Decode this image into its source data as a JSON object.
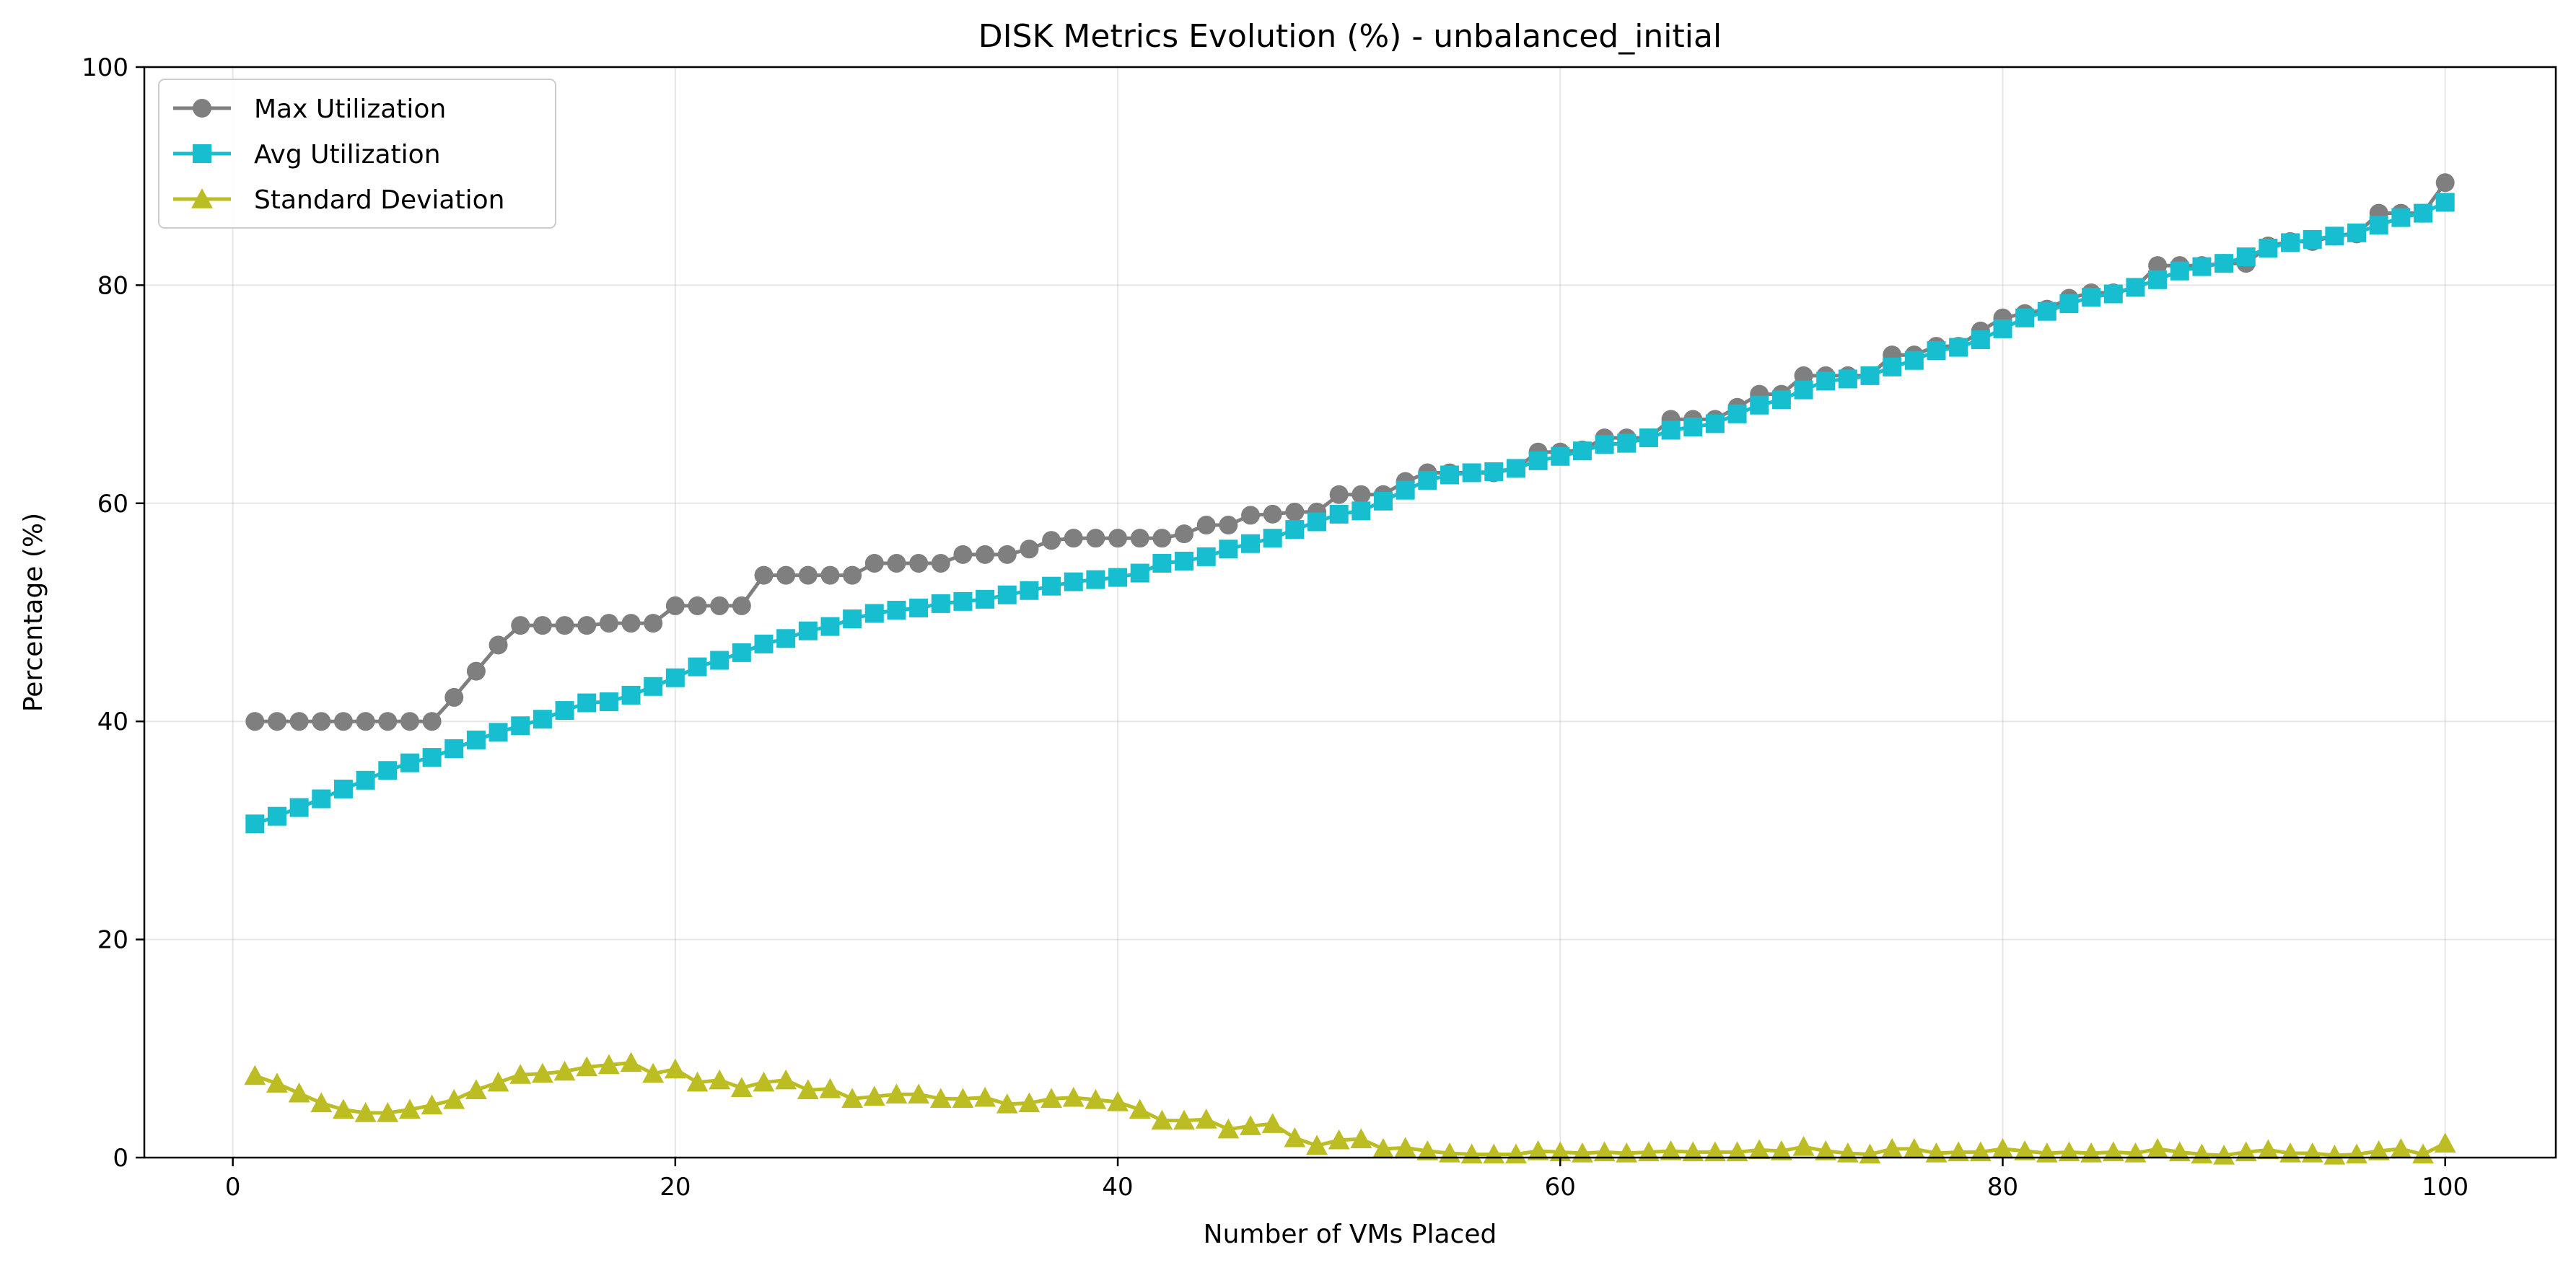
{
  "chart_data": {
    "type": "line",
    "title": "DISK Metrics Evolution (%) - unbalanced_initial",
    "xlabel": "Number of VMs Placed",
    "ylabel": "Percentage (%)",
    "xlim": [
      -4,
      105
    ],
    "ylim": [
      0,
      100
    ],
    "xticks": [
      0,
      20,
      40,
      60,
      80,
      100
    ],
    "yticks": [
      0,
      20,
      40,
      60,
      80,
      100
    ],
    "grid": true,
    "legend_position": "top-left",
    "series": [
      {
        "name": "Max Utilization",
        "color": "#7f7f7f",
        "marker": "circle",
        "x": [
          1,
          2,
          3,
          4,
          5,
          6,
          7,
          8,
          9,
          10,
          11,
          12,
          13,
          14,
          15,
          16,
          17,
          18,
          19,
          20,
          21,
          22,
          23,
          24,
          25,
          26,
          27,
          28,
          29,
          30,
          31,
          32,
          33,
          34,
          35,
          36,
          37,
          38,
          39,
          40,
          41,
          42,
          43,
          44,
          45,
          46,
          47,
          48,
          49,
          50,
          51,
          52,
          53,
          54,
          55,
          56,
          57,
          58,
          59,
          60,
          61,
          62,
          63,
          64,
          65,
          66,
          67,
          68,
          69,
          70,
          71,
          72,
          73,
          74,
          75,
          76,
          77,
          78,
          79,
          80,
          81,
          82,
          83,
          84,
          85,
          86,
          87,
          88,
          89,
          90,
          91,
          92,
          93,
          94,
          95,
          96,
          97,
          98,
          99,
          100
        ],
        "values": [
          40,
          40,
          40,
          40,
          40,
          40,
          40,
          40,
          40,
          42.2,
          44.6,
          47,
          48.8,
          48.8,
          48.8,
          48.8,
          49,
          49,
          49,
          50.6,
          50.6,
          50.6,
          50.6,
          53.4,
          53.4,
          53.4,
          53.4,
          53.4,
          54.5,
          54.5,
          54.5,
          54.5,
          55.3,
          55.3,
          55.3,
          55.8,
          56.6,
          56.8,
          56.8,
          56.8,
          56.8,
          56.8,
          57.2,
          58,
          58,
          58.9,
          59,
          59.2,
          59.2,
          60.8,
          60.8,
          60.8,
          62,
          62.8,
          62.8,
          62.8,
          62.8,
          63.2,
          64.7,
          64.7,
          64.9,
          66,
          66,
          66,
          67.7,
          67.7,
          67.7,
          68.8,
          70,
          70,
          71.7,
          71.7,
          71.7,
          71.7,
          73.6,
          73.6,
          74.4,
          74.4,
          75.8,
          77,
          77.4,
          77.8,
          78.8,
          79.3,
          79.3,
          79.8,
          81.8,
          81.8,
          81.8,
          82,
          82,
          83.6,
          84,
          84,
          84.5,
          84.7,
          86.6,
          86.6,
          86.6,
          89.4
        ]
      },
      {
        "name": "Avg Utilization",
        "color": "#17becf",
        "marker": "square",
        "x": [
          1,
          2,
          3,
          4,
          5,
          6,
          7,
          8,
          9,
          10,
          11,
          12,
          13,
          14,
          15,
          16,
          17,
          18,
          19,
          20,
          21,
          22,
          23,
          24,
          25,
          26,
          27,
          28,
          29,
          30,
          31,
          32,
          33,
          34,
          35,
          36,
          37,
          38,
          39,
          40,
          41,
          42,
          43,
          44,
          45,
          46,
          47,
          48,
          49,
          50,
          51,
          52,
          53,
          54,
          55,
          56,
          57,
          58,
          59,
          60,
          61,
          62,
          63,
          64,
          65,
          66,
          67,
          68,
          69,
          70,
          71,
          72,
          73,
          74,
          75,
          76,
          77,
          78,
          79,
          80,
          81,
          82,
          83,
          84,
          85,
          86,
          87,
          88,
          89,
          90,
          91,
          92,
          93,
          94,
          95,
          96,
          97,
          98,
          99,
          100
        ],
        "values": [
          30.6,
          31.3,
          32.1,
          32.9,
          33.8,
          34.6,
          35.5,
          36.2,
          36.7,
          37.5,
          38.3,
          39,
          39.6,
          40.2,
          41,
          41.7,
          41.8,
          42.4,
          43.2,
          44,
          45,
          45.6,
          46.3,
          47.1,
          47.6,
          48.3,
          48.7,
          49.4,
          49.9,
          50.2,
          50.4,
          50.8,
          51,
          51.2,
          51.6,
          52,
          52.4,
          52.8,
          53,
          53.2,
          53.6,
          54.5,
          54.7,
          55.1,
          55.8,
          56.3,
          56.8,
          57.6,
          58.3,
          59,
          59.3,
          60.2,
          61.2,
          62.1,
          62.6,
          62.8,
          62.9,
          63.2,
          63.9,
          64.3,
          64.8,
          65.4,
          65.5,
          66,
          66.7,
          67,
          67.3,
          68.2,
          69,
          69.5,
          70.4,
          71.2,
          71.4,
          71.7,
          72.5,
          73.1,
          74,
          74.3,
          75,
          76,
          77,
          77.6,
          78.3,
          78.9,
          79.2,
          79.8,
          80.5,
          81.3,
          81.7,
          82,
          82.6,
          83.4,
          83.9,
          84.2,
          84.5,
          84.8,
          85.5,
          86.2,
          86.6,
          87.6
        ]
      },
      {
        "name": "Standard Deviation",
        "color": "#bcbd22",
        "marker": "triangle",
        "x": [
          1,
          2,
          3,
          4,
          5,
          6,
          7,
          8,
          9,
          10,
          11,
          12,
          13,
          14,
          15,
          16,
          17,
          18,
          19,
          20,
          21,
          22,
          23,
          24,
          25,
          26,
          27,
          28,
          29,
          30,
          31,
          32,
          33,
          34,
          35,
          36,
          37,
          38,
          39,
          40,
          41,
          42,
          43,
          44,
          45,
          46,
          47,
          48,
          49,
          50,
          51,
          52,
          53,
          54,
          55,
          56,
          57,
          58,
          59,
          60,
          61,
          62,
          63,
          64,
          65,
          66,
          67,
          68,
          69,
          70,
          71,
          72,
          73,
          74,
          75,
          76,
          77,
          78,
          79,
          80,
          81,
          82,
          83,
          84,
          85,
          86,
          87,
          88,
          89,
          90,
          91,
          92,
          93,
          94,
          95,
          96,
          97,
          98,
          99,
          100
        ],
        "values": [
          7.5,
          6.8,
          5.9,
          5,
          4.4,
          4.1,
          4.1,
          4.4,
          4.8,
          5.3,
          6.2,
          6.9,
          7.6,
          7.7,
          7.9,
          8.3,
          8.5,
          8.7,
          7.7,
          8.1,
          6.9,
          7.1,
          6.4,
          6.9,
          7.1,
          6.2,
          6.3,
          5.4,
          5.6,
          5.8,
          5.8,
          5.4,
          5.4,
          5.5,
          4.9,
          5,
          5.4,
          5.5,
          5.3,
          5.1,
          4.4,
          3.4,
          3.4,
          3.5,
          2.6,
          2.9,
          3.1,
          1.8,
          1.1,
          1.6,
          1.7,
          0.8,
          0.9,
          0.6,
          0.4,
          0.3,
          0.3,
          0.3,
          0.6,
          0.5,
          0.4,
          0.5,
          0.4,
          0.5,
          0.6,
          0.5,
          0.5,
          0.5,
          0.7,
          0.6,
          1,
          0.6,
          0.4,
          0.3,
          0.8,
          0.8,
          0.4,
          0.5,
          0.5,
          0.8,
          0.6,
          0.4,
          0.5,
          0.4,
          0.5,
          0.4,
          0.8,
          0.5,
          0.3,
          0.2,
          0.5,
          0.7,
          0.4,
          0.4,
          0.2,
          0.3,
          0.6,
          0.8,
          0.3,
          1.3
        ]
      }
    ]
  }
}
